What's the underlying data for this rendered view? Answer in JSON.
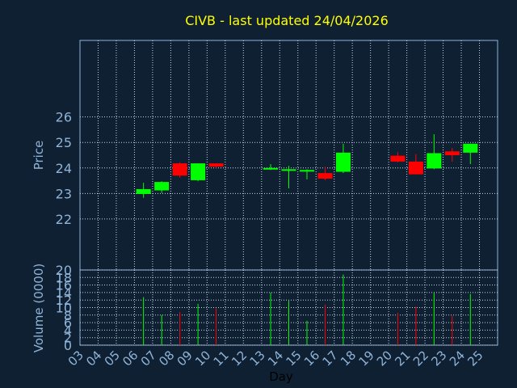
{
  "chart_data": {
    "type": "candlestick",
    "title": "CIVB - last updated 24/04/2026",
    "xlabel": "Day",
    "ylabel_price": "Price",
    "ylabel_volume": "Volume (0000)",
    "x_ticks": [
      "03",
      "04",
      "05",
      "06",
      "07",
      "08",
      "09",
      "10",
      "11",
      "12",
      "13",
      "14",
      "15",
      "16",
      "17",
      "18",
      "19",
      "20",
      "21",
      "22",
      "23",
      "24",
      "25"
    ],
    "price_ylim": [
      20,
      29
    ],
    "price_ticks": [
      "20",
      "22",
      "23",
      "24",
      "25",
      "26"
    ],
    "volume_ylim": [
      0,
      20
    ],
    "volume_ticks": [
      "0",
      "2",
      "4",
      "6",
      "8",
      "10",
      "12",
      "14",
      "16",
      "18"
    ],
    "grid": true,
    "colors": {
      "up": "#00ff00",
      "down": "#ff0000",
      "background": "#0f2033",
      "axis_text": "#8fb4d8",
      "title": "#ffff00"
    },
    "candles": [
      {
        "day": "06",
        "open": 22.98,
        "high": 23.42,
        "low": 22.83,
        "close": 23.17,
        "volume": 12.8
      },
      {
        "day": "07",
        "open": 23.12,
        "high": 23.48,
        "low": 23.02,
        "close": 23.45,
        "volume": 8.0
      },
      {
        "day": "08",
        "open": 24.18,
        "high": 24.22,
        "low": 23.62,
        "close": 23.7,
        "volume": 8.8
      },
      {
        "day": "09",
        "open": 23.52,
        "high": 24.18,
        "low": 23.48,
        "close": 24.18,
        "volume": 11.0
      },
      {
        "day": "10",
        "open": 24.18,
        "high": 24.18,
        "low": 24.0,
        "close": 24.05,
        "volume": 9.8
      },
      {
        "day": "13",
        "open": 23.98,
        "high": 24.15,
        "low": 23.92,
        "close": 24.0,
        "volume": 14.0
      },
      {
        "day": "14",
        "open": 23.92,
        "high": 24.08,
        "low": 23.2,
        "close": 23.95,
        "volume": 11.8
      },
      {
        "day": "15",
        "open": 23.88,
        "high": 23.95,
        "low": 23.55,
        "close": 23.92,
        "volume": 6.5
      },
      {
        "day": "16",
        "open": 23.8,
        "high": 24.05,
        "low": 23.52,
        "close": 23.58,
        "volume": 10.8
      },
      {
        "day": "17",
        "open": 23.85,
        "high": 24.95,
        "low": 23.8,
        "close": 24.6,
        "volume": 18.8
      },
      {
        "day": "20",
        "open": 24.48,
        "high": 24.62,
        "low": 24.22,
        "close": 24.25,
        "volume": 8.6
      },
      {
        "day": "21",
        "open": 24.25,
        "high": 24.55,
        "low": 23.75,
        "close": 23.75,
        "volume": 10.2
      },
      {
        "day": "22",
        "open": 23.98,
        "high": 25.32,
        "low": 23.95,
        "close": 24.58,
        "volume": 14.0
      },
      {
        "day": "23",
        "open": 24.65,
        "high": 24.78,
        "low": 24.25,
        "close": 24.5,
        "volume": 7.8
      },
      {
        "day": "24",
        "open": 24.6,
        "high": 24.95,
        "low": 24.15,
        "close": 24.95,
        "volume": 13.6
      }
    ]
  }
}
